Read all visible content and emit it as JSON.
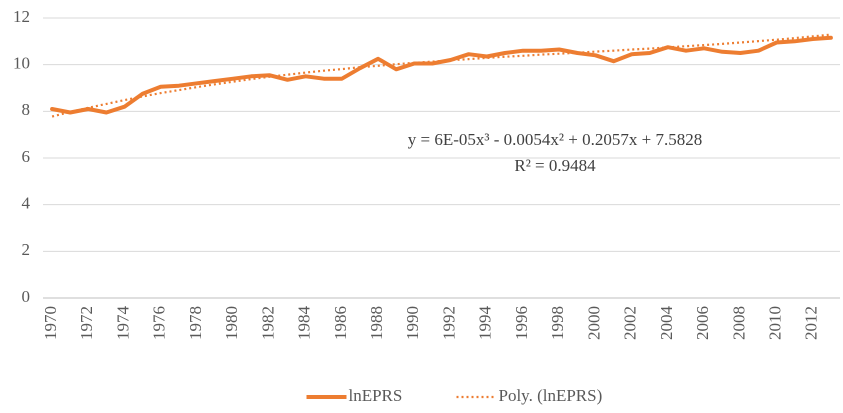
{
  "chart_data": {
    "type": "line",
    "x": [
      1970,
      1971,
      1972,
      1973,
      1974,
      1975,
      1976,
      1977,
      1978,
      1979,
      1980,
      1981,
      1982,
      1983,
      1984,
      1985,
      1986,
      1987,
      1988,
      1989,
      1990,
      1991,
      1992,
      1993,
      1994,
      1995,
      1996,
      1997,
      1998,
      1999,
      2000,
      2001,
      2002,
      2003,
      2004,
      2005,
      2006,
      2007,
      2008,
      2009,
      2010,
      2011,
      2012,
      2013
    ],
    "xlim": [
      1969.5,
      2013.5
    ],
    "xticks": [
      1970,
      1972,
      1974,
      1976,
      1978,
      1980,
      1982,
      1984,
      1986,
      1988,
      1990,
      1992,
      1994,
      1996,
      1998,
      2000,
      2002,
      2004,
      2006,
      2008,
      2010,
      2012
    ],
    "ylim": [
      0,
      12
    ],
    "yticks": [
      0,
      2,
      4,
      6,
      8,
      10,
      12
    ],
    "grid": true,
    "legend": "bottom",
    "series": [
      {
        "name": "lnEPRS",
        "color": "#ed7d31",
        "style": "solid",
        "values": [
          8.1,
          7.95,
          8.1,
          7.95,
          8.2,
          8.75,
          9.05,
          9.1,
          9.2,
          9.3,
          9.4,
          9.5,
          9.55,
          9.35,
          9.5,
          9.4,
          9.4,
          9.85,
          10.25,
          9.8,
          10.05,
          10.05,
          10.2,
          10.45,
          10.35,
          10.5,
          10.6,
          10.6,
          10.65,
          10.5,
          10.4,
          10.15,
          10.45,
          10.5,
          10.75,
          10.6,
          10.7,
          10.55,
          10.5,
          10.6,
          10.95,
          11.0,
          11.1,
          11.15
        ]
      },
      {
        "name": "Poly. (lnEPRS)",
        "color": "#ed7d31",
        "style": "dotted",
        "values": [
          7.78,
          7.97,
          8.15,
          8.32,
          8.48,
          8.64,
          8.78,
          8.91,
          9.04,
          9.16,
          9.27,
          9.38,
          9.48,
          9.57,
          9.66,
          9.74,
          9.81,
          9.89,
          9.95,
          10.02,
          10.08,
          10.13,
          10.19,
          10.24,
          10.29,
          10.34,
          10.38,
          10.43,
          10.47,
          10.51,
          10.56,
          10.6,
          10.65,
          10.69,
          10.74,
          10.79,
          10.84,
          10.89,
          10.95,
          11.01,
          11.07,
          11.14,
          11.21,
          11.29
        ]
      }
    ],
    "annotations": [
      "y = 6E-05x³ - 0.0054x² + 0.2057x + 7.5828",
      "R² = 0.9484"
    ]
  }
}
